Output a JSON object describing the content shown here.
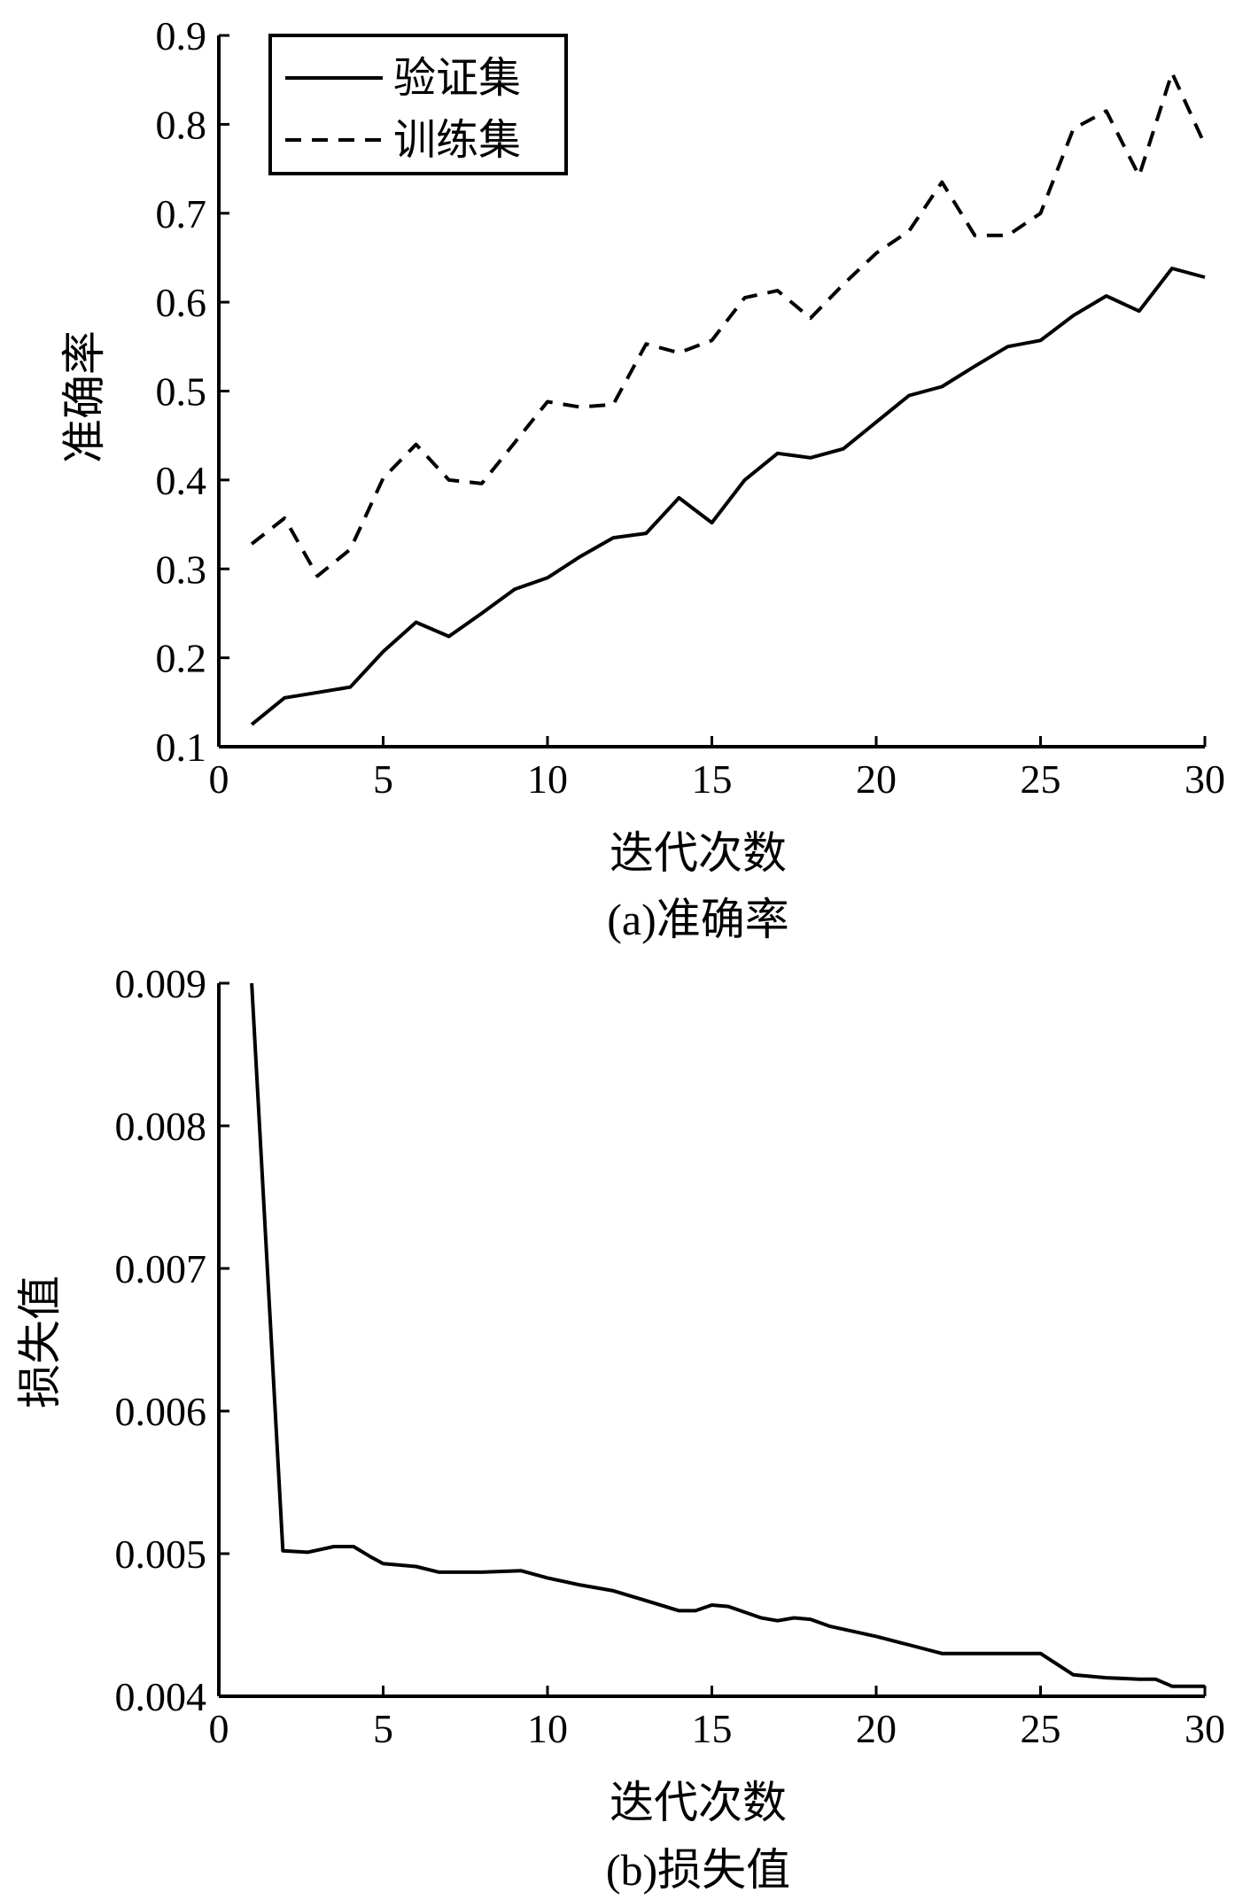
{
  "chart_data": [
    {
      "type": "line",
      "caption": "(a)准确率",
      "xlabel": "迭代次数",
      "ylabel": "准确率",
      "xlim": [
        0,
        30
      ],
      "ylim": [
        0.1,
        0.9
      ],
      "xticks": [
        0,
        5,
        10,
        15,
        20,
        25,
        30
      ],
      "xtick_labels": [
        "0",
        "5",
        "10",
        "15",
        "20",
        "25",
        "30"
      ],
      "yticks": [
        0.1,
        0.2,
        0.3,
        0.4,
        0.5,
        0.6,
        0.7,
        0.8,
        0.9
      ],
      "ytick_labels": [
        "0.1",
        "0.2",
        "0.3",
        "0.4",
        "0.5",
        "0.6",
        "0.7",
        "0.8",
        "0.9"
      ],
      "grid": false,
      "legend": "top-left",
      "series": [
        {
          "name": "验证集",
          "style": "solid",
          "x": [
            1,
            2,
            3,
            4,
            5,
            6,
            7,
            8,
            9,
            10,
            11,
            12,
            13,
            14,
            15,
            16,
            17,
            18,
            19,
            20,
            21,
            22,
            23,
            24,
            25,
            26,
            27,
            28,
            29,
            30
          ],
          "values": [
            0.125,
            0.155,
            0.161,
            0.167,
            0.207,
            0.24,
            0.224,
            0.25,
            0.277,
            0.29,
            0.314,
            0.335,
            0.34,
            0.38,
            0.352,
            0.4,
            0.43,
            0.425,
            0.435,
            0.465,
            0.495,
            0.505,
            0.528,
            0.55,
            0.557,
            0.585,
            0.607,
            0.59,
            0.638,
            0.628
          ]
        },
        {
          "name": "训练集",
          "style": "dashed",
          "x": [
            1,
            2,
            3,
            4,
            5,
            6,
            7,
            8,
            9,
            10,
            11,
            12,
            13,
            14,
            15,
            16,
            17,
            18,
            19,
            20,
            21,
            22,
            23,
            24,
            25,
            26,
            27,
            28,
            29,
            30
          ],
          "values": [
            0.328,
            0.357,
            0.292,
            0.322,
            0.402,
            0.44,
            0.4,
            0.396,
            0.442,
            0.488,
            0.482,
            0.485,
            0.553,
            0.543,
            0.557,
            0.605,
            0.613,
            0.582,
            0.62,
            0.655,
            0.68,
            0.735,
            0.675,
            0.675,
            0.7,
            0.795,
            0.815,
            0.742,
            0.858,
            0.777
          ]
        }
      ]
    },
    {
      "type": "line",
      "caption": "(b)损失值",
      "xlabel": "迭代次数",
      "ylabel": "损失值",
      "xlim": [
        0,
        30
      ],
      "ylim": [
        0.004,
        0.009
      ],
      "xticks": [
        0,
        5,
        10,
        15,
        20,
        25,
        30
      ],
      "xtick_labels": [
        "0",
        "5",
        "10",
        "15",
        "20",
        "25",
        "30"
      ],
      "yticks": [
        0.004,
        0.005,
        0.006,
        0.007,
        0.008,
        0.009
      ],
      "ytick_labels": [
        "0.004",
        "0.005",
        "0.006",
        "0.007",
        "0.008",
        "0.009"
      ],
      "grid": false,
      "series": [
        {
          "style": "solid",
          "x": [
            1,
            1.95,
            2.7,
            3.5,
            4.1,
            4.6,
            5,
            6,
            6.7,
            8,
            9.2,
            10,
            11,
            12,
            13,
            14,
            14.5,
            15,
            15.5,
            16.5,
            17,
            17.5,
            18,
            18.6,
            20,
            21,
            22,
            23,
            24,
            25,
            26,
            27,
            28,
            28.5,
            29,
            30
          ],
          "values": [
            0.009,
            0.00502,
            0.00501,
            0.00505,
            0.00505,
            0.00498,
            0.00493,
            0.00491,
            0.00487,
            0.00487,
            0.00488,
            0.00483,
            0.00478,
            0.00474,
            0.00467,
            0.0046,
            0.0046,
            0.00464,
            0.00463,
            0.00455,
            0.00453,
            0.00455,
            0.00454,
            0.00449,
            0.00442,
            0.00436,
            0.0043,
            0.0043,
            0.0043,
            0.0043,
            0.00415,
            0.00413,
            0.00412,
            0.00412,
            0.00407,
            0.00407
          ]
        }
      ]
    }
  ]
}
